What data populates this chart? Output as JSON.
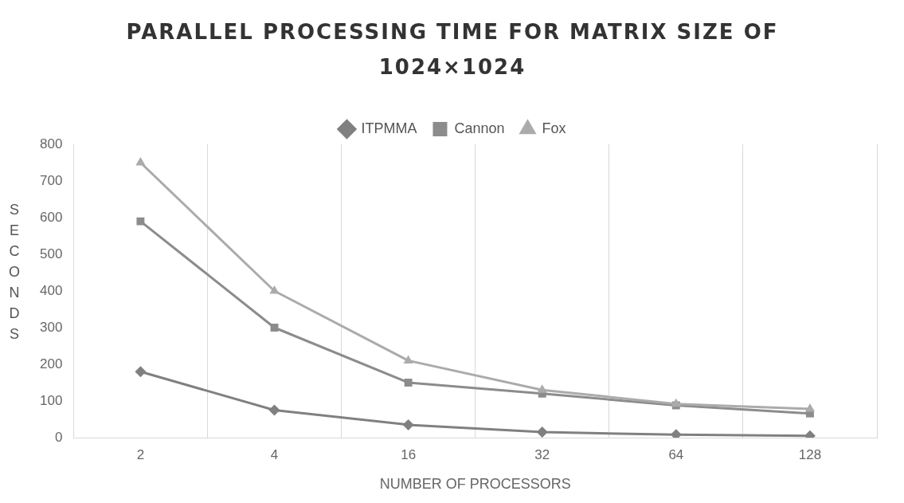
{
  "chart_data": {
    "type": "line",
    "title": "PARALLEL PROCESSING TIME FOR  MATRIX SIZE OF 1024×1024",
    "xlabel": "NUMBER OF PROCESSORS",
    "ylabel": "SECONDS",
    "categories": [
      "2",
      "4",
      "16",
      "32",
      "64",
      "128"
    ],
    "series": [
      {
        "name": "ITPMMA",
        "color": "#808080",
        "marker": "diamond",
        "values": [
          180,
          75,
          35,
          15,
          8,
          5
        ]
      },
      {
        "name": "Cannon",
        "color": "#8c8c8c",
        "marker": "square",
        "values": [
          590,
          300,
          150,
          120,
          88,
          66
        ]
      },
      {
        "name": "Fox",
        "color": "#ababab",
        "marker": "triangle",
        "values": [
          750,
          400,
          210,
          130,
          92,
          78
        ]
      }
    ],
    "ylim": [
      0,
      800
    ],
    "yticks": [
      0,
      100,
      200,
      300,
      400,
      500,
      600,
      700,
      800
    ],
    "grid": "x",
    "legend": "top",
    "line_style": "solid"
  }
}
